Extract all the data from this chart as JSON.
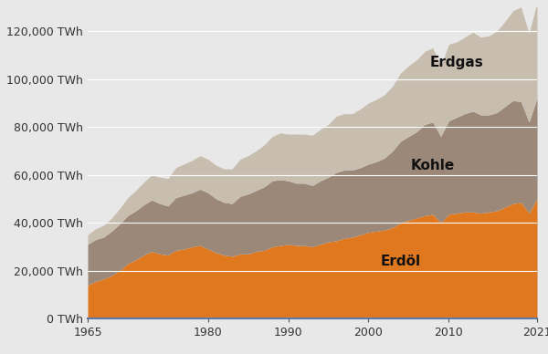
{
  "years": [
    1965,
    1966,
    1967,
    1968,
    1969,
    1970,
    1971,
    1972,
    1973,
    1974,
    1975,
    1976,
    1977,
    1978,
    1979,
    1980,
    1981,
    1982,
    1983,
    1984,
    1985,
    1986,
    1987,
    1988,
    1989,
    1990,
    1991,
    1992,
    1993,
    1994,
    1995,
    1996,
    1997,
    1998,
    1999,
    2000,
    2001,
    2002,
    2003,
    2004,
    2005,
    2006,
    2007,
    2008,
    2009,
    2010,
    2011,
    2012,
    2013,
    2014,
    2015,
    2016,
    2017,
    2018,
    2019,
    2020,
    2021
  ],
  "erdoel": [
    14000,
    15500,
    16500,
    18000,
    20000,
    23000,
    24500,
    26500,
    28000,
    27000,
    26500,
    28500,
    29000,
    30000,
    30500,
    29000,
    27500,
    26500,
    26000,
    27000,
    27000,
    28000,
    28500,
    30000,
    30500,
    31000,
    30500,
    30500,
    30000,
    31000,
    32000,
    32500,
    33500,
    34000,
    35000,
    36000,
    36500,
    37000,
    38000,
    40000,
    41000,
    42000,
    43000,
    43500,
    40000,
    43500,
    44000,
    44500,
    44500,
    44000,
    44500,
    45000,
    46500,
    48000,
    48500,
    44000,
    50000
  ],
  "kohle": [
    17000,
    17500,
    17500,
    18500,
    19500,
    20000,
    20500,
    21000,
    21500,
    21000,
    20500,
    22000,
    22500,
    22500,
    23500,
    23500,
    22500,
    22000,
    22000,
    24000,
    25000,
    25500,
    26500,
    27500,
    27500,
    26500,
    26000,
    26000,
    25500,
    26500,
    27000,
    28500,
    28500,
    28000,
    28000,
    28500,
    29000,
    30000,
    32000,
    34000,
    35000,
    36000,
    38000,
    38500,
    36000,
    39000,
    40000,
    41000,
    42000,
    41000,
    40500,
    41000,
    42000,
    43000,
    42000,
    38000,
    42000
  ],
  "erdgas": [
    4000,
    4500,
    5000,
    5500,
    6500,
    7500,
    8500,
    9500,
    10500,
    11000,
    11500,
    12500,
    13000,
    13500,
    14000,
    14000,
    14000,
    14000,
    14500,
    15500,
    16000,
    16500,
    17500,
    18500,
    19500,
    19500,
    20500,
    20500,
    21000,
    21500,
    22000,
    23500,
    23500,
    23500,
    24500,
    25500,
    26000,
    26500,
    27000,
    28500,
    29500,
    30000,
    30500,
    31000,
    29500,
    32000,
    31500,
    32000,
    33000,
    32500,
    33000,
    34000,
    35500,
    37500,
    39500,
    37000,
    40000
  ],
  "color_erdoel": "#E07820",
  "color_kohle": "#9B8878",
  "color_erdgas": "#C8BEB0",
  "bg_color": "#E8E8E8",
  "plot_bg_color": "#DCDCDC",
  "label_erdoel": "Erdöl",
  "label_kohle": "Kohle",
  "label_erdgas": "Erdgas",
  "yticks": [
    0,
    20000,
    40000,
    60000,
    80000,
    100000,
    120000
  ],
  "xticks": [
    1965,
    1980,
    1990,
    2000,
    2010,
    2021
  ],
  "ylim": [
    0,
    130000
  ],
  "xlim": [
    1965,
    2021
  ],
  "grid_color": "#FFFFFF",
  "spine_color": "#5577AA",
  "tick_label_color": "#333333",
  "label_text_color": "#111111",
  "label_fontsize": 11,
  "tick_fontsize": 9
}
